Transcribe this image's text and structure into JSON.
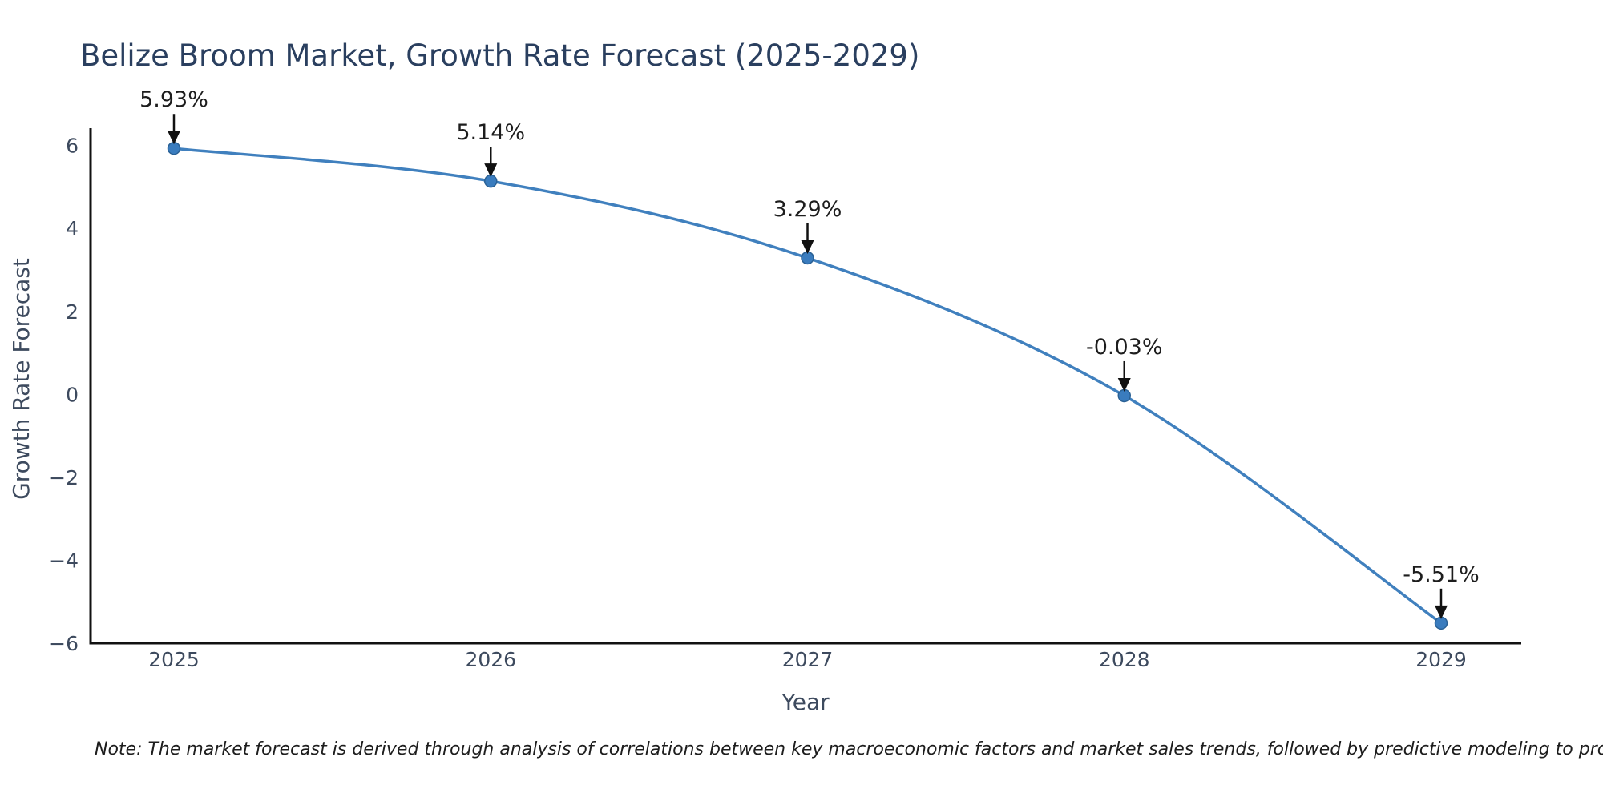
{
  "chart_data": {
    "type": "line",
    "title": "Belize Broom Market, Growth Rate Forecast (2025-2029)",
    "xlabel": "Year",
    "ylabel": "Growth Rate Forecast",
    "x": [
      2025,
      2026,
      2027,
      2028,
      2029
    ],
    "series": [
      {
        "name": "Growth Rate Forecast",
        "values": [
          5.93,
          5.14,
          3.29,
          -0.03,
          -5.51
        ],
        "point_labels": [
          "5.93%",
          "5.14%",
          "3.29%",
          "-0.03%",
          "-5.51%"
        ]
      }
    ],
    "xticks": [
      "2025",
      "2026",
      "2027",
      "2028",
      "2029"
    ],
    "yticks": [
      6,
      4,
      2,
      0,
      -2,
      -4,
      -6
    ],
    "ylim": [
      -6.4,
      6.4
    ],
    "grid": false,
    "legend_position": "none",
    "line_shape": "spline",
    "colors": {
      "line": "#4080be",
      "marker_fill": "#3a7cbe",
      "marker_edge": "#2a6195",
      "axis_line": "#111111",
      "title_text": "#2a3f5f",
      "tick_text": "#3d4a5e",
      "annotation_text": "#1d1d1d",
      "arrow": "#111111",
      "background": "#ffffff"
    }
  },
  "note": {
    "text": "Note: The market forecast is derived through analysis of correlations between key macroeconomic factors and market sales trends, followed by predictive modeling to project future sales"
  }
}
